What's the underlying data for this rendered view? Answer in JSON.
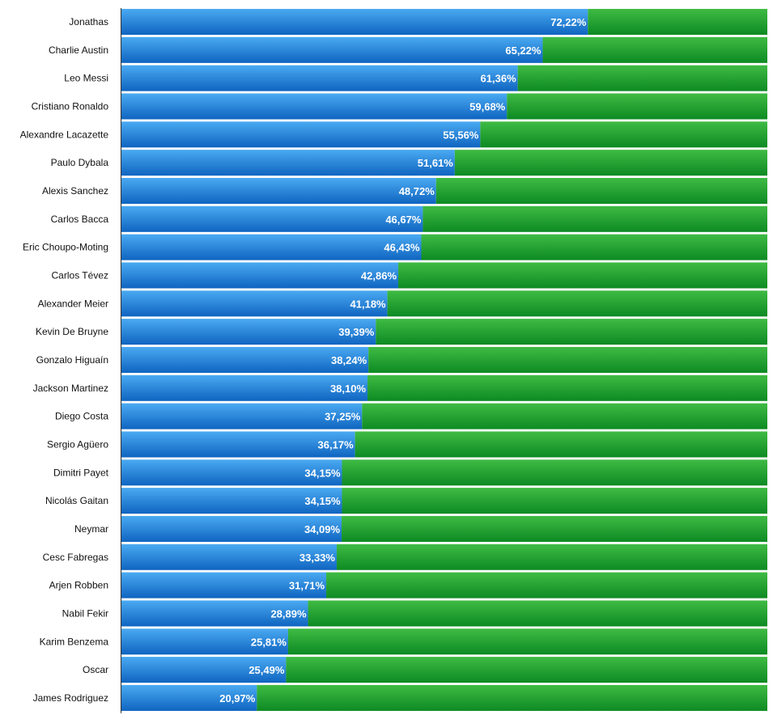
{
  "chart_data": {
    "type": "bar",
    "orientation": "horizontal",
    "stacked": "100%",
    "grid": false,
    "legend": "none",
    "xlim": [
      0,
      100
    ],
    "colors": {
      "primary_top": "#4aaaf2",
      "primary_bottom": "#0f64c0",
      "remainder_top": "#3fbb44",
      "remainder_bottom": "#0d8a23"
    },
    "categories": [
      "Jonathas",
      "Charlie Austin",
      "Leo Messi",
      "Cristiano Ronaldo",
      "Alexandre Lacazette",
      "Paulo Dybala",
      "Alexis Sanchez",
      "Carlos Bacca",
      "Eric Choupo-Moting",
      "Carlos Tévez",
      "Alexander Meier",
      "Kevin De Bruyne",
      "Gonzalo Higuaín",
      "Jackson Martinez",
      "Diego Costa",
      "Sergio Agüero",
      "Dimitri Payet",
      "Nicolás Gaitan",
      "Neymar",
      "Cesc Fabregas",
      "Arjen Robben",
      "Nabil Fekir",
      "Karim Benzema",
      "Oscar",
      "James Rodriguez"
    ],
    "values": [
      72.22,
      65.22,
      61.36,
      59.68,
      55.56,
      51.61,
      48.72,
      46.67,
      46.43,
      42.86,
      41.18,
      39.39,
      38.24,
      38.1,
      37.25,
      36.17,
      34.15,
      34.15,
      34.09,
      33.33,
      31.71,
      28.89,
      25.81,
      25.49,
      20.97
    ],
    "value_labels": [
      "72,22%",
      "65,22%",
      "61,36%",
      "59,68%",
      "55,56%",
      "51,61%",
      "48,72%",
      "46,67%",
      "46,43%",
      "42,86%",
      "41,18%",
      "39,39%",
      "38,24%",
      "38,10%",
      "37,25%",
      "36,17%",
      "34,15%",
      "34,15%",
      "34,09%",
      "33,33%",
      "31,71%",
      "28,89%",
      "25,81%",
      "25,49%",
      "20,97%"
    ]
  }
}
